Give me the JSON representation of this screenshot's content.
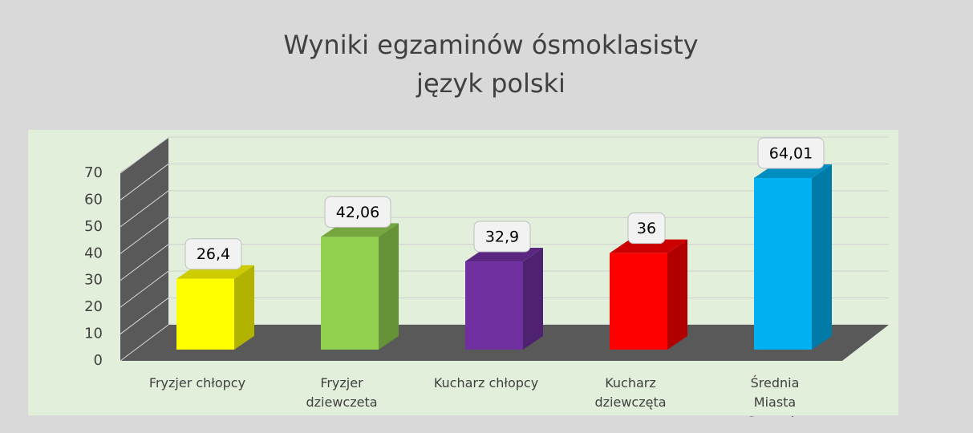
{
  "chart_data": {
    "type": "bar3d",
    "title_lines": [
      "Wyniki egzaminów ósmoklasisty",
      "język polski"
    ],
    "categories": [
      "Fryzjer chłopcy",
      "Fryzjer dziewczeta",
      "Kucharz chłopcy",
      "Kucharz dziewczęta",
      "Średnia Miasta Szczecin"
    ],
    "values": [
      26.4,
      42.06,
      32.9,
      36,
      64.01
    ],
    "value_labels": [
      "26,4",
      "42,06",
      "32,9",
      "36",
      "64,01"
    ],
    "colors": [
      "#ffff00",
      "#92d050",
      "#7030a0",
      "#ff0000",
      "#00b0f0"
    ],
    "ylim": [
      0,
      70
    ],
    "yticks": [
      0,
      10,
      20,
      30,
      40,
      50,
      60,
      70
    ],
    "grid": true
  }
}
